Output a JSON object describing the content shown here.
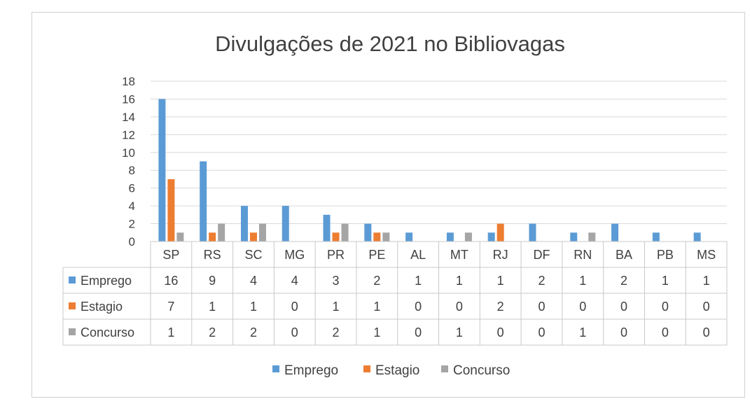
{
  "chart_data": {
    "type": "bar",
    "title": "Divulgações de 2021 no Bibliovagas",
    "categories": [
      "SP",
      "RS",
      "SC",
      "MG",
      "PR",
      "PE",
      "AL",
      "MT",
      "RJ",
      "DF",
      "RN",
      "BA",
      "PB",
      "MS"
    ],
    "series": [
      {
        "name": "Emprego",
        "color": "#5B9BD5",
        "values": [
          16,
          9,
          4,
          4,
          3,
          2,
          1,
          1,
          1,
          2,
          1,
          2,
          1,
          1
        ]
      },
      {
        "name": "Estagio",
        "color": "#ED7D31",
        "values": [
          7,
          1,
          1,
          0,
          1,
          1,
          0,
          0,
          2,
          0,
          0,
          0,
          0,
          0
        ]
      },
      {
        "name": "Concurso",
        "color": "#A5A5A5",
        "values": [
          1,
          2,
          2,
          0,
          2,
          1,
          0,
          1,
          0,
          0,
          1,
          0,
          0,
          0
        ]
      }
    ],
    "ylim": [
      0,
      18
    ],
    "yticks": [
      0,
      2,
      4,
      6,
      8,
      10,
      12,
      14,
      16,
      18
    ],
    "grid": true,
    "legend": "bottom",
    "data_table": true
  }
}
